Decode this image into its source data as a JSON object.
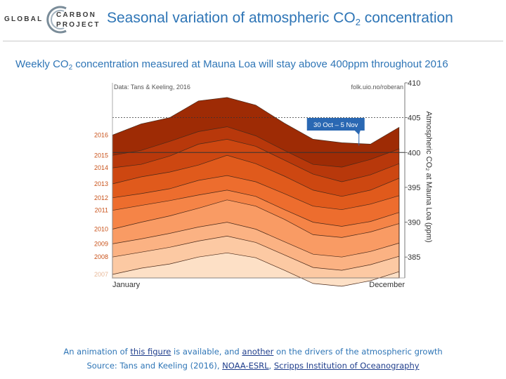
{
  "header": {
    "logo_left": "GLOBAL",
    "logo_right_1": "CARBON",
    "logo_right_2": "PROJECT",
    "title_main": "Seasonal variation of atmospheric CO",
    "title_sub": "2",
    "title_end": " concentration",
    "subtitle_a": "Weekly CO",
    "subtitle_sub": "2",
    "subtitle_b": " concentration measured at Mauna Loa will stay above 400ppm throughout 2016"
  },
  "chart_data": {
    "type": "area",
    "title": "Seasonal variation of atmospheric CO2 concentration",
    "source_label": "Data: Tans & Keeling, 2016",
    "credit_label": "folk.uio.no/roberan",
    "xlabel_start": "January",
    "xlabel_end": "December",
    "ylabel": "Atmospheric CO₂ at Mauna Loa (ppm)",
    "ylim": [
      382,
      410
    ],
    "yticks": [
      "385",
      "390",
      "395",
      "400",
      "405",
      "410"
    ],
    "reference_lines_ppm": [
      400,
      405
    ],
    "annotation": "30 Oct – 5 Nov",
    "annotation_week": 44,
    "x_weeks": [
      1,
      6,
      11,
      16,
      21,
      26,
      31,
      36,
      41,
      46,
      51
    ],
    "series": [
      {
        "name": "2007",
        "color": "#fde0c6",
        "values": [
          382.5,
          383.4,
          384.0,
          385.0,
          385.6,
          384.9,
          383.1,
          381.2,
          380.8,
          381.6,
          382.9
        ]
      },
      {
        "name": "2008",
        "color": "#fcc9a3",
        "values": [
          385.0,
          385.7,
          386.4,
          387.3,
          388.0,
          387.1,
          385.3,
          383.5,
          383.1,
          383.9,
          385.1
        ]
      },
      {
        "name": "2009",
        "color": "#fbb283",
        "values": [
          386.9,
          387.6,
          388.4,
          389.3,
          390.0,
          389.0,
          387.2,
          385.4,
          385.0,
          385.8,
          387.0
        ]
      },
      {
        "name": "2010",
        "color": "#f99b64",
        "values": [
          389.0,
          390.0,
          390.9,
          392.0,
          393.2,
          392.3,
          390.4,
          388.2,
          387.8,
          388.6,
          389.8
        ]
      },
      {
        "name": "2011",
        "color": "#f58447",
        "values": [
          391.7,
          392.4,
          393.1,
          393.9,
          394.6,
          393.7,
          391.8,
          390.0,
          389.4,
          390.1,
          391.4
        ]
      },
      {
        "name": "2012",
        "color": "#ed6d2e",
        "values": [
          393.5,
          394.1,
          394.8,
          396.0,
          396.7,
          395.8,
          394.1,
          392.3,
          391.8,
          392.6,
          393.8
        ]
      },
      {
        "name": "2013",
        "color": "#e05a1c",
        "values": [
          395.5,
          396.5,
          397.2,
          398.2,
          399.6,
          398.4,
          396.6,
          394.6,
          393.7,
          394.6,
          396.3
        ]
      },
      {
        "name": "2014",
        "color": "#cd4711",
        "values": [
          397.8,
          398.3,
          399.5,
          401.2,
          401.9,
          400.9,
          398.9,
          396.9,
          395.8,
          396.8,
          398.4
        ]
      },
      {
        "name": "2015",
        "color": "#b8380b",
        "values": [
          399.6,
          400.3,
          401.6,
          403.0,
          403.7,
          402.4,
          400.3,
          398.3,
          397.9,
          399.0,
          400.5
        ]
      },
      {
        "name": "2016",
        "color": "#9e2b05",
        "values": [
          402.5,
          404.1,
          405.0,
          407.4,
          407.9,
          406.8,
          404.2,
          401.9,
          401.4,
          401.2,
          403.6
        ]
      }
    ]
  },
  "footer": {
    "line1_a": "An animation of ",
    "line1_link1": "this figure",
    "line1_b": " is available, and ",
    "line1_link2": "another",
    "line1_c": " on the drivers of the atmospheric growth",
    "line2_a": "Source: Tans and Keeling (2016), ",
    "line2_link1": "NOAA-ESRL",
    "line2_b": ", ",
    "line2_link2": "Scripps Institution of Oceanography"
  }
}
